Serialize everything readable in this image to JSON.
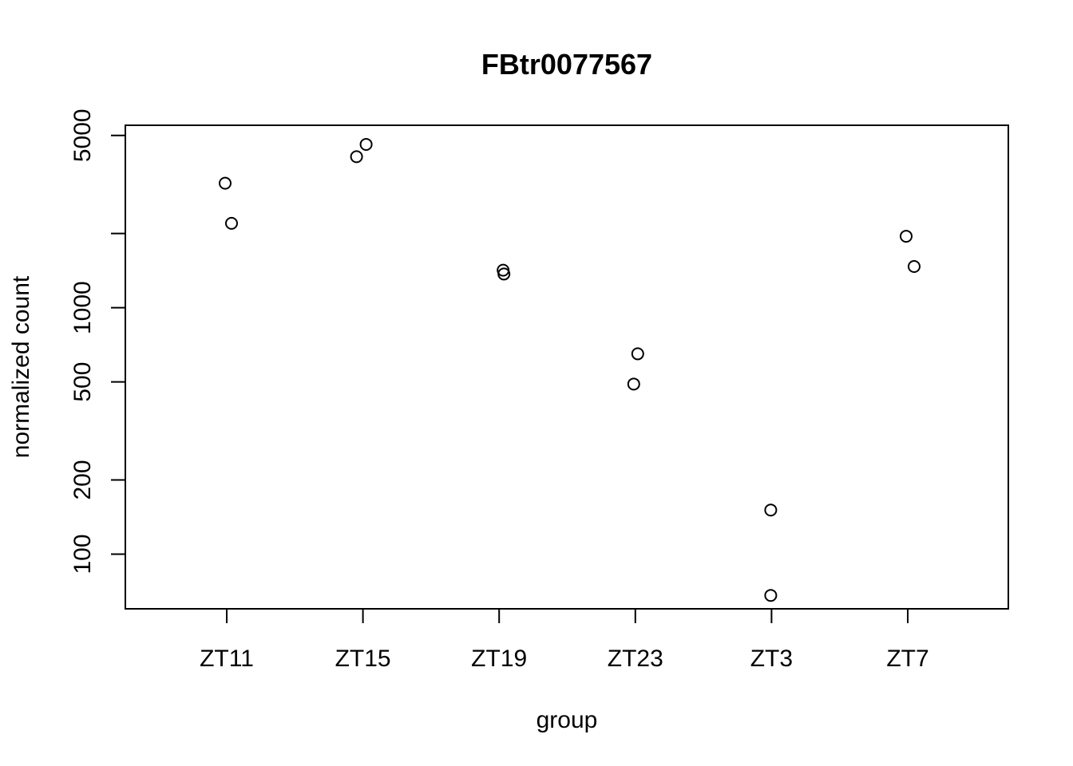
{
  "chart_data": {
    "type": "scatter",
    "title": "FBtr0077567",
    "xlabel": "group",
    "ylabel": "normalized count",
    "y_scale": "log",
    "ylim": [
      60,
      5500
    ],
    "categories": [
      "ZT11",
      "ZT15",
      "ZT19",
      "ZT23",
      "ZT3",
      "ZT7"
    ],
    "y_ticks": [
      100,
      200,
      500,
      1000,
      2000,
      5000
    ],
    "y_tick_labels": [
      "100",
      "200",
      "500",
      "1000",
      "",
      "5000"
    ],
    "points": [
      {
        "group": "ZT11",
        "y": 3200
      },
      {
        "group": "ZT11",
        "y": 2200
      },
      {
        "group": "ZT15",
        "y": 4100
      },
      {
        "group": "ZT15",
        "y": 4600
      },
      {
        "group": "ZT19",
        "y": 1420
      },
      {
        "group": "ZT19",
        "y": 1370
      },
      {
        "group": "ZT23",
        "y": 650
      },
      {
        "group": "ZT23",
        "y": 490
      },
      {
        "group": "ZT3",
        "y": 151
      },
      {
        "group": "ZT3",
        "y": 68
      },
      {
        "group": "ZT7",
        "y": 1950
      },
      {
        "group": "ZT7",
        "y": 1470
      }
    ],
    "grid": false,
    "legend": "none"
  }
}
